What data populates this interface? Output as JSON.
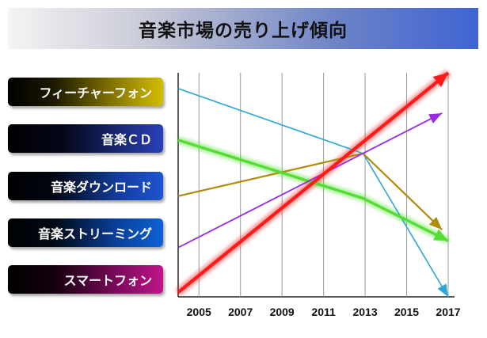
{
  "title": "音楽市場の売り上げ傾向",
  "chart_data": {
    "type": "line",
    "title": "音楽市場の売り上げ傾向",
    "x": [
      2005,
      2007,
      2009,
      2011,
      2013,
      2015,
      2017
    ],
    "xlim": [
      2004,
      2017
    ],
    "highlight_tick": "2013",
    "highlight_color": "#e00000",
    "ylim": [
      0,
      100
    ],
    "grid": true,
    "legend_position": "left",
    "series": [
      {
        "name": "フィーチャーフォン",
        "color": "#2aa6d8",
        "points": [
          [
            2004,
            93
          ],
          [
            2012.9,
            64
          ],
          [
            2017,
            0
          ]
        ]
      },
      {
        "name": "音楽ＣＤ",
        "color": "#b08b0c",
        "points": [
          [
            2004,
            45
          ],
          [
            2012.9,
            64
          ],
          [
            2016.7,
            30
          ]
        ]
      },
      {
        "name": "音楽ダウンロード",
        "color": "#55dd33",
        "points": [
          [
            2004,
            70
          ],
          [
            2012.9,
            44
          ],
          [
            2017,
            25
          ]
        ]
      },
      {
        "name": "音楽ストリーミング",
        "color": "#9a28e8",
        "points": [
          [
            2004,
            22
          ],
          [
            2016.7,
            82
          ]
        ]
      },
      {
        "name": "スマートフォン",
        "color": "#ff1a1a",
        "points": [
          [
            2004,
            2
          ],
          [
            2017,
            100
          ]
        ]
      }
    ]
  }
}
